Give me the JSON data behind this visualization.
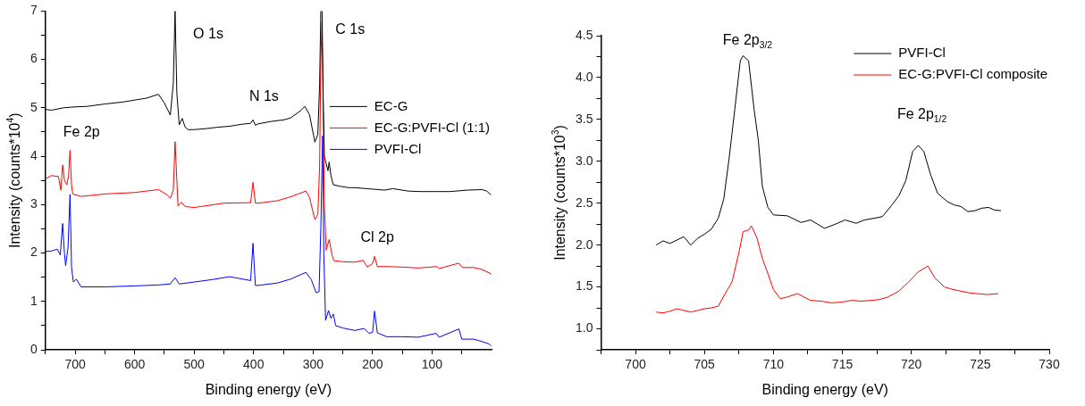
{
  "chart_data": [
    {
      "type": "line",
      "xlabel": "Binding energy (eV)",
      "ylabel": "Intensity (counts*10$^{4}$)",
      "xlim": [
        750,
        0
      ],
      "ylim": [
        0,
        7
      ],
      "xticks": [
        {
          "value": 750,
          "label": null
        },
        700,
        {
          "value": 650,
          "label": null
        },
        600,
        {
          "value": 550,
          "label": null
        },
        500,
        {
          "value": 450,
          "label": null
        },
        400,
        {
          "value": 350,
          "label": null
        },
        300,
        {
          "value": 250,
          "label": null
        },
        200,
        {
          "value": 150,
          "label": null
        },
        100,
        {
          "value": 50,
          "label": null
        }
      ],
      "yticks": [
        0,
        {
          "value": 0.5,
          "label": null
        },
        1,
        {
          "value": 1.5,
          "label": null
        },
        2,
        {
          "value": 2.5,
          "label": null
        },
        3,
        {
          "value": 3.5,
          "label": null
        },
        4,
        {
          "value": 4.5,
          "label": null
        },
        5,
        {
          "value": 5.5,
          "label": null
        },
        6,
        {
          "value": 6.5,
          "label": null
        },
        7
      ],
      "grid": false,
      "legend": "top right",
      "marker": "none",
      "annotations": [
        "O 1s",
        "N 1s",
        "C 1s",
        "Fe 2p",
        "Cl 2p"
      ],
      "series": [
        {
          "name": "EC-G",
          "color": "#000000",
          "x": [
            750,
            740,
            720,
            700,
            680,
            650,
            620,
            600,
            580,
            560,
            550,
            540,
            535,
            532,
            529,
            525,
            520,
            515,
            510,
            500,
            480,
            460,
            440,
            420,
            405,
            401,
            397,
            392,
            370,
            350,
            338,
            320,
            314,
            306,
            297,
            292,
            289,
            287,
            285,
            283,
            281,
            278,
            275,
            273,
            270,
            266,
            255,
            240,
            230,
            200,
            180,
            166,
            140,
            120,
            100,
            70,
            40,
            16,
            8,
            1
          ],
          "values": [
            4.97,
            4.95,
            5.0,
            5.02,
            5.03,
            5.08,
            5.12,
            5.16,
            5.2,
            5.28,
            5.1,
            4.85,
            5.5,
            7.0,
            5.3,
            4.65,
            4.78,
            4.6,
            4.55,
            4.55,
            4.57,
            4.6,
            4.62,
            4.66,
            4.68,
            4.75,
            4.64,
            4.67,
            4.72,
            4.75,
            4.79,
            4.95,
            5.03,
            4.86,
            4.29,
            4.45,
            5.5,
            7.0,
            7.0,
            5.2,
            4.0,
            3.85,
            3.7,
            3.88,
            3.6,
            3.41,
            3.38,
            3.35,
            3.35,
            3.32,
            3.3,
            3.33,
            3.28,
            3.27,
            3.27,
            3.27,
            3.3,
            3.31,
            3.28,
            3.2
          ]
        },
        {
          "name": "EC-G:PVFI-Cl (1:1)",
          "color": "#ff0000",
          "x": [
            750,
            740,
            728,
            724,
            721,
            718,
            714,
            711,
            708.6,
            706,
            704,
            690,
            650,
            600,
            560,
            545,
            540,
            535,
            532,
            529,
            527,
            521.6,
            515,
            500,
            450,
            405,
            401,
            397,
            392,
            360,
            338,
            312,
            306,
            297,
            292,
            289,
            287,
            285,
            283,
            281,
            278,
            273,
            268,
            265,
            250,
            230,
            216,
            209,
            200,
            196.6,
            192,
            176,
            150,
            123,
            92,
            88,
            55,
            49,
            30,
            16,
            1
          ],
          "values": [
            3.53,
            3.6,
            3.58,
            3.3,
            3.82,
            3.5,
            3.41,
            3.6,
            4.12,
            3.4,
            3.22,
            3.17,
            3.22,
            3.25,
            3.31,
            3.2,
            3.13,
            3.3,
            4.3,
            3.5,
            2.97,
            3.05,
            2.96,
            2.94,
            3.03,
            3.04,
            3.46,
            3.03,
            3.03,
            3.08,
            3.16,
            3.28,
            3.15,
            2.69,
            2.8,
            3.8,
            6.0,
            6.77,
            5.0,
            3.0,
            2.06,
            2.28,
            1.95,
            1.84,
            1.82,
            1.81,
            1.85,
            1.71,
            1.78,
            1.93,
            1.72,
            1.72,
            1.71,
            1.69,
            1.72,
            1.68,
            1.79,
            1.7,
            1.7,
            1.66,
            1.57
          ]
        },
        {
          "name": "PVFI-Cl",
          "color": "#0000ff",
          "x": [
            750,
            740,
            730,
            725,
            721,
            718,
            716,
            712,
            708.6,
            706,
            703,
            698,
            690,
            650,
            600,
            560,
            540,
            532,
            525,
            500,
            470,
            440,
            405,
            401,
            397,
            392,
            360,
            338,
            312,
            303,
            295,
            290,
            287,
            284,
            282,
            279,
            274,
            270,
            266,
            262,
            250,
            230,
            214,
            206,
            200,
            196.6,
            192,
            176,
            150,
            123,
            93,
            88,
            55,
            50,
            30,
            16,
            4,
            1
          ],
          "values": [
            2.03,
            2.04,
            2.08,
            1.96,
            2.61,
            2.0,
            1.74,
            2.1,
            3.21,
            1.7,
            1.4,
            1.46,
            1.3,
            1.3,
            1.32,
            1.34,
            1.36,
            1.49,
            1.36,
            1.4,
            1.45,
            1.51,
            1.43,
            2.2,
            1.33,
            1.33,
            1.38,
            1.46,
            1.6,
            1.45,
            1.18,
            1.2,
            2.5,
            4.42,
            2.0,
            0.61,
            0.81,
            0.65,
            0.74,
            0.5,
            0.45,
            0.4,
            0.44,
            0.34,
            0.36,
            0.8,
            0.35,
            0.27,
            0.27,
            0.26,
            0.34,
            0.26,
            0.43,
            0.22,
            0.22,
            0.17,
            0.12,
            0.08
          ]
        }
      ]
    },
    {
      "type": "line",
      "xlabel": "Binding energy (eV)",
      "ylabel": "Intensity (counts*10$^{3}$)",
      "xlim": [
        697.5,
        730
      ],
      "ylim": [
        0.75,
        4.5
      ],
      "xticks": [
        {
          "value": 697.5,
          "label": null
        },
        700,
        {
          "value": 702.5,
          "label": null
        },
        705,
        {
          "value": 707.5,
          "label": null
        },
        710,
        {
          "value": 712.5,
          "label": null
        },
        715,
        {
          "value": 717.5,
          "label": null
        },
        720,
        {
          "value": 722.5,
          "label": null
        },
        725,
        {
          "value": 727.5,
          "label": null
        },
        730
      ],
      "yticks": [
        {
          "value": 0.75,
          "label": null
        },
        {
          "value": 1,
          "label": "1.0"
        },
        {
          "value": 1.25,
          "label": null
        },
        1.5,
        {
          "value": 1.75,
          "label": null
        },
        {
          "value": 2,
          "label": "2.0"
        },
        {
          "value": 2.25,
          "label": null
        },
        2.5,
        {
          "value": 2.75,
          "label": null
        },
        {
          "value": 3,
          "label": "3.0"
        },
        {
          "value": 3.25,
          "label": null
        },
        3.5,
        {
          "value": 3.75,
          "label": null
        },
        {
          "value": 4,
          "label": "4.0"
        },
        {
          "value": 4.25,
          "label": null
        },
        4.5
      ],
      "grid": false,
      "legend": "top right",
      "marker": "none",
      "annotations": [
        "Fe 2p$_{3/2}$",
        "Fe 2p$_{1/2}$"
      ],
      "series": [
        {
          "name": "PVFI-Cl",
          "color": "#000000",
          "x": [
            701.5,
            702,
            702.5,
            703,
            703.5,
            704,
            704.5,
            705,
            705.5,
            706,
            706.4,
            706.8,
            707.2,
            707.6,
            707.8,
            708.2,
            708.6,
            708.9,
            709.2,
            709.6,
            710,
            711,
            712,
            712.7,
            713.7,
            714.5,
            715.2,
            716,
            716.6,
            717.3,
            717.9,
            718.6,
            719.1,
            719.6,
            720.1,
            720.5,
            720.9,
            721.4,
            721.9,
            722.6,
            723.1,
            723.6,
            724.1,
            724.6,
            725.1,
            725.6,
            726,
            726.5
          ],
          "values": [
            2.0,
            2.05,
            2.02,
            2.06,
            2.1,
            2.0,
            2.08,
            2.13,
            2.19,
            2.32,
            2.55,
            3.05,
            3.62,
            4.2,
            4.26,
            4.2,
            3.62,
            3.26,
            2.7,
            2.45,
            2.36,
            2.35,
            2.27,
            2.3,
            2.2,
            2.25,
            2.3,
            2.26,
            2.3,
            2.32,
            2.34,
            2.48,
            2.59,
            2.77,
            3.12,
            3.19,
            3.12,
            2.84,
            2.62,
            2.52,
            2.48,
            2.46,
            2.4,
            2.41,
            2.44,
            2.45,
            2.42,
            2.41
          ]
        },
        {
          "name": "EC-G:PVFI-Cl composite",
          "color": "#ff0000",
          "x": [
            701.5,
            702,
            702.5,
            703,
            703.5,
            704,
            704.5,
            705,
            705.5,
            706,
            706.5,
            707,
            707.5,
            707.8,
            708.2,
            708.4,
            708.8,
            709.2,
            709.6,
            710,
            710.5,
            711,
            711.75,
            712.7,
            713.5,
            714.2,
            715,
            715.7,
            716.4,
            717.1,
            717.7,
            718.3,
            719.1,
            719.8,
            720.5,
            721.2,
            721.7,
            722.4,
            723,
            723.6,
            724.2,
            724.8,
            725.5,
            726.3
          ],
          "values": [
            1.2,
            1.19,
            1.21,
            1.24,
            1.22,
            1.2,
            1.22,
            1.24,
            1.25,
            1.27,
            1.42,
            1.56,
            1.91,
            2.16,
            2.18,
            2.23,
            2.09,
            1.84,
            1.66,
            1.47,
            1.36,
            1.38,
            1.42,
            1.34,
            1.33,
            1.31,
            1.32,
            1.34,
            1.33,
            1.34,
            1.35,
            1.38,
            1.45,
            1.56,
            1.68,
            1.75,
            1.61,
            1.5,
            1.47,
            1.45,
            1.43,
            1.42,
            1.41,
            1.42
          ]
        }
      ]
    }
  ]
}
